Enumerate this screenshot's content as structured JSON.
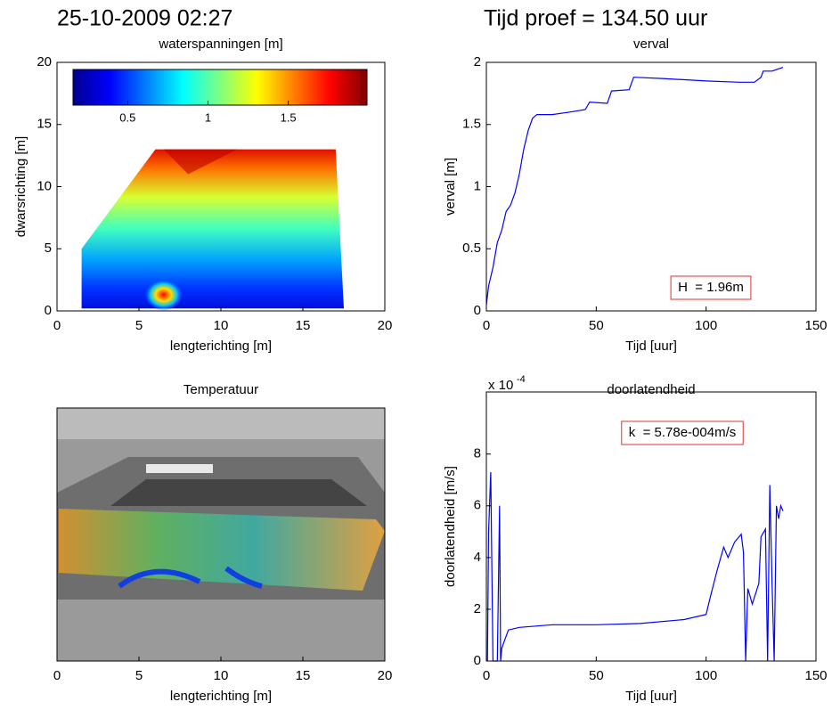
{
  "header": {
    "date": "25-10-2009 02:27",
    "test_time": "Tijd proef = 134.50 uur"
  },
  "chart_data": [
    {
      "type": "contour",
      "title": "waterspanningen [m]",
      "xlabel": "lengterichting [m]",
      "ylabel": "dwarsrichting [m]",
      "xlim": [
        0,
        20
      ],
      "xticks": [
        0,
        5,
        10,
        15,
        20
      ],
      "ylim": [
        0,
        20
      ],
      "yticks": [
        0,
        5,
        10,
        15,
        20
      ],
      "colorbar": {
        "lim": [
          0.16,
          1.99
        ],
        "ticks": [
          0.5,
          1,
          1.5
        ]
      }
    },
    {
      "type": "line",
      "title": "verval",
      "xlabel": "Tijd [uur]",
      "ylabel": "verval [m]",
      "xlim": [
        0,
        150
      ],
      "xticks": [
        0,
        50,
        100,
        150
      ],
      "ylim": [
        0,
        2
      ],
      "yticks": [
        0,
        0.5,
        1,
        1.5,
        2
      ],
      "annotation": "H  = 1.96m",
      "series": [
        {
          "color": "#0000ff",
          "x": [
            0,
            1,
            3,
            5,
            7,
            9,
            11,
            13,
            15,
            17,
            19,
            21,
            23,
            30,
            38,
            45,
            47,
            55,
            57,
            65,
            67,
            80,
            100,
            115,
            122,
            125,
            126,
            130,
            135
          ],
          "values": [
            0.05,
            0.2,
            0.35,
            0.55,
            0.65,
            0.8,
            0.85,
            0.95,
            1.1,
            1.3,
            1.45,
            1.55,
            1.58,
            1.58,
            1.6,
            1.62,
            1.68,
            1.67,
            1.77,
            1.78,
            1.88,
            1.87,
            1.85,
            1.84,
            1.84,
            1.88,
            1.93,
            1.93,
            1.96
          ]
        }
      ]
    },
    {
      "type": "image",
      "title": "Temperatuur",
      "xlabel": "lengterichting [m]",
      "xlim": [
        0,
        20
      ],
      "xticks": [
        0,
        5,
        10,
        15,
        20
      ]
    },
    {
      "type": "line",
      "title": "doorlatendheid",
      "xlabel": "Tijd [uur]",
      "ylabel": "doorlatendheid [m/s]",
      "exponent": {
        "base": "x 10",
        "power": "-4"
      },
      "xlim": [
        0,
        150
      ],
      "xticks": [
        0,
        50,
        100,
        150
      ],
      "ylim": [
        0,
        10.4
      ],
      "yticks": [
        0,
        2,
        4,
        6,
        8
      ],
      "annotation": "k  = 5.78e-004m/s",
      "series": [
        {
          "color": "#0000ff",
          "x": [
            0.5,
            1,
            2,
            2.5,
            3,
            4,
            5,
            6,
            6.5,
            7,
            10,
            15,
            30,
            50,
            70,
            90,
            100,
            102,
            105,
            108,
            110,
            113,
            116,
            117,
            118,
            119,
            121,
            124,
            125,
            127,
            128,
            129,
            130,
            131,
            132,
            133,
            134,
            135
          ],
          "values": [
            0,
            5,
            7.3,
            3.5,
            0,
            0,
            0,
            6,
            0,
            0.5,
            1.2,
            1.3,
            1.4,
            1.4,
            1.45,
            1.6,
            1.8,
            2.5,
            3.5,
            4.4,
            4,
            4.6,
            4.9,
            4.2,
            0,
            2.8,
            2.2,
            3,
            4.8,
            5.1,
            0,
            6.8,
            3,
            0,
            6,
            5.5,
            6,
            5.8
          ]
        }
      ]
    }
  ]
}
